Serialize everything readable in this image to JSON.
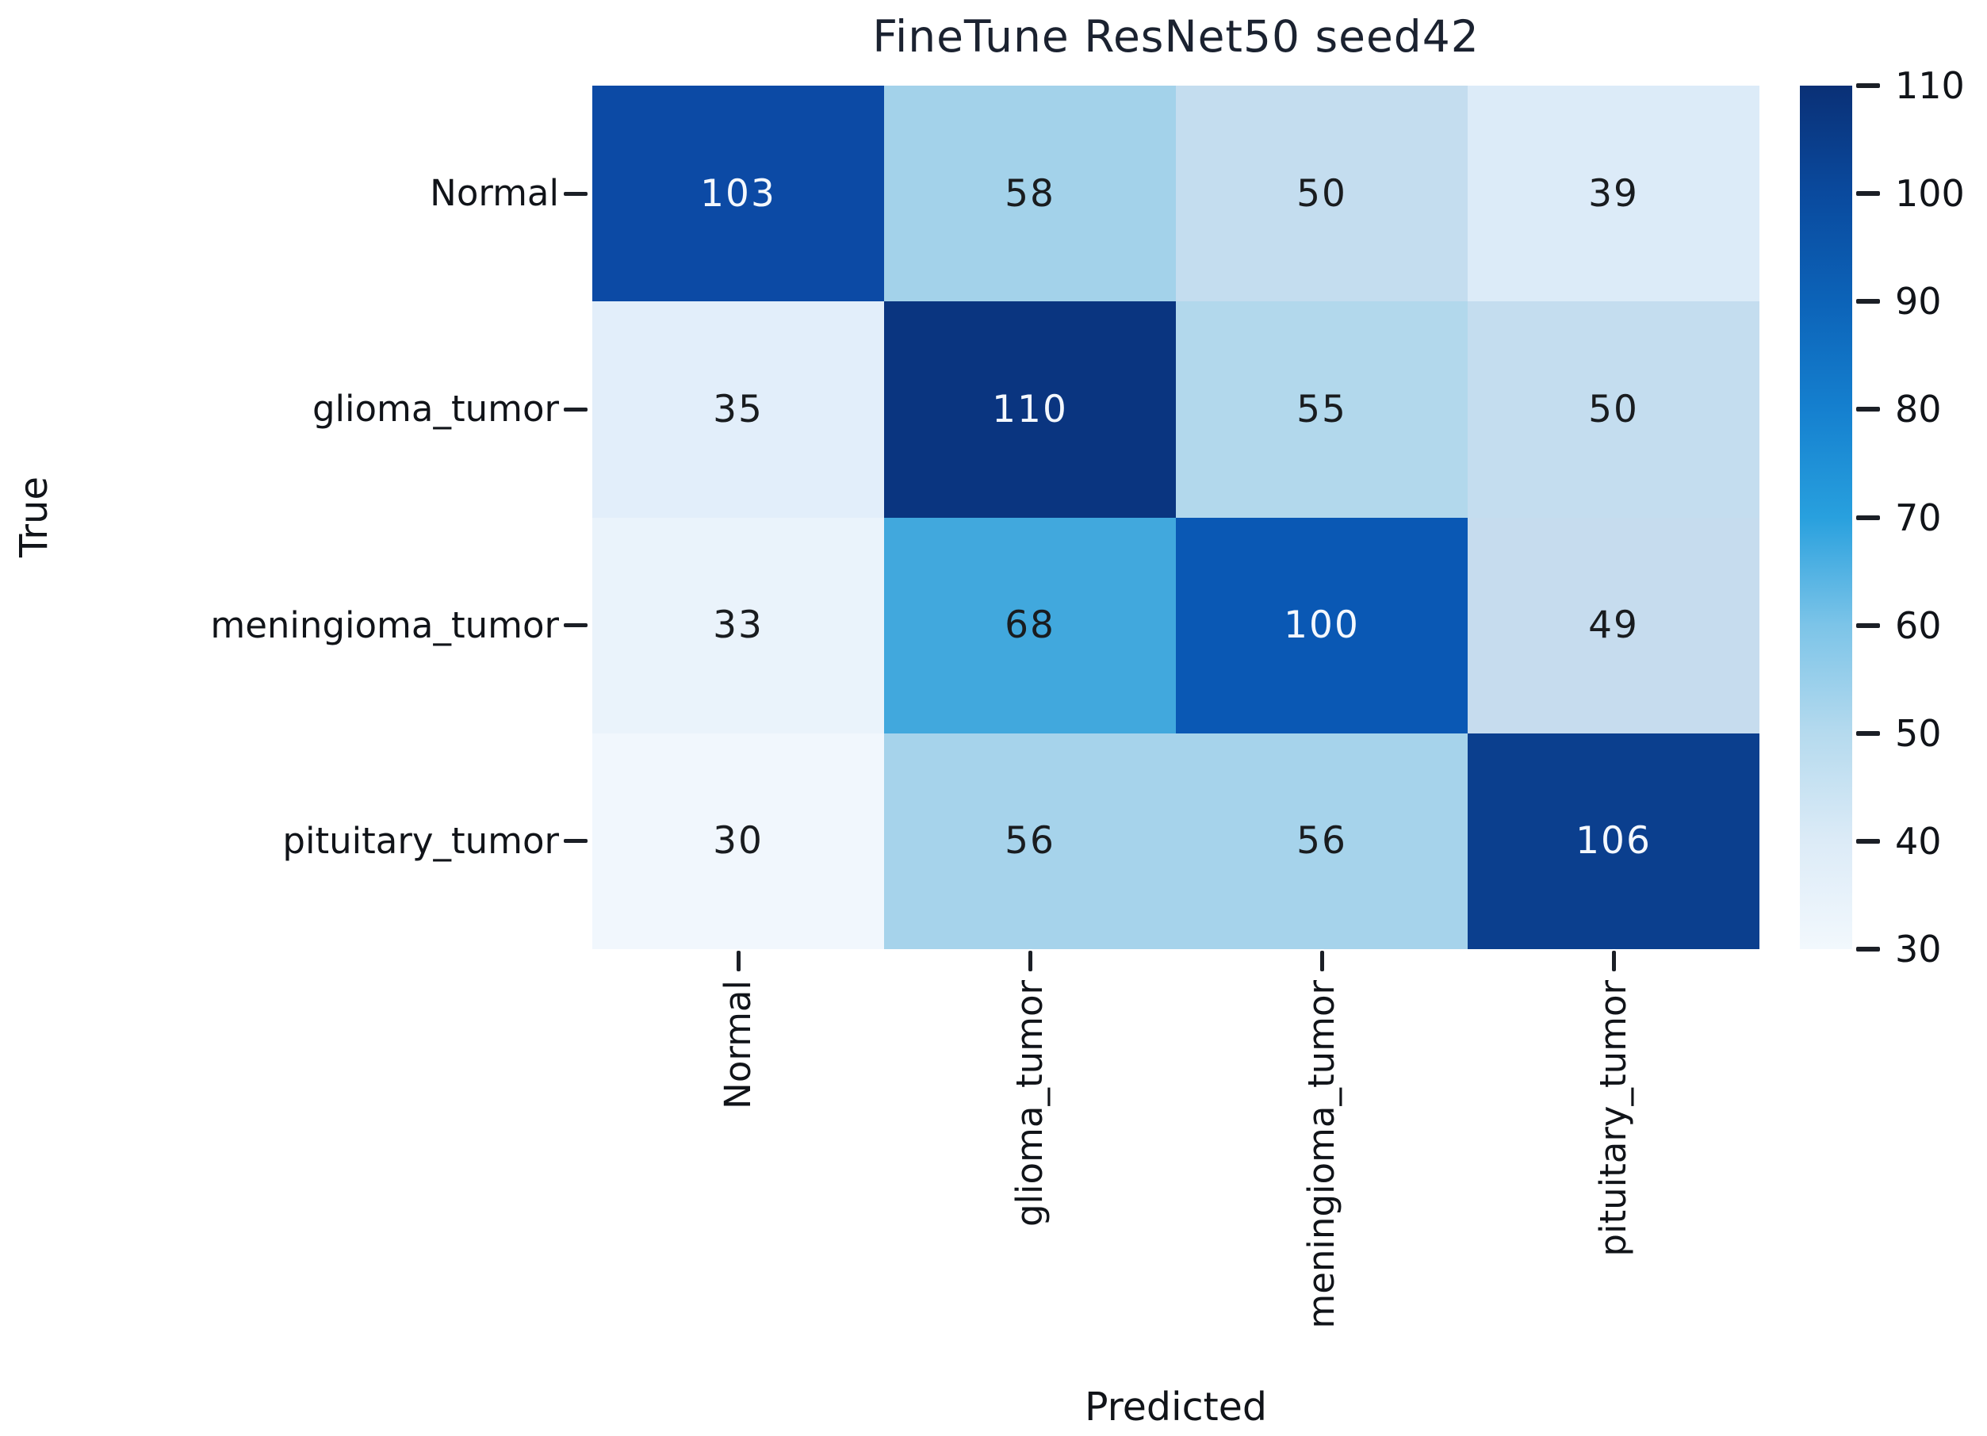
{
  "title": "FineTune ResNet50 seed42",
  "chart_data": {
    "type": "heatmap",
    "title": "FineTune ResNet50 seed42",
    "xlabel": "Predicted",
    "ylabel": "True",
    "x_categories": [
      "Normal",
      "glioma_tumor",
      "meningioma_tumor",
      "pituitary_tumor"
    ],
    "y_categories": [
      "Normal",
      "glioma_tumor",
      "meningioma_tumor",
      "pituitary_tumor"
    ],
    "values": [
      [
        103,
        58,
        50,
        39
      ],
      [
        35,
        110,
        55,
        50
      ],
      [
        33,
        68,
        100,
        49
      ],
      [
        30,
        56,
        56,
        106
      ]
    ],
    "cell_colors": [
      [
        "#0c4aa5",
        "#a3d2ea",
        "#c4ddef",
        "#dcebf8"
      ],
      [
        "#e2eefa",
        "#0a3580",
        "#b2d8ec",
        "#c4ddef"
      ],
      [
        "#eaf3fb",
        "#41a8dd",
        "#0a58b4",
        "#c6dcee"
      ],
      [
        "#f1f7fd",
        "#a6d3eb",
        "#a6d3eb",
        "#0b3f8e"
      ]
    ],
    "cell_text_colors": [
      [
        "#f4f8fd",
        "#191c1f",
        "#191c1f",
        "#191c1f"
      ],
      [
        "#191c1f",
        "#f4f8fd",
        "#191c1f",
        "#191c1f"
      ],
      [
        "#191c1f",
        "#191c1f",
        "#f4f8fd",
        "#191c1f"
      ],
      [
        "#191c1f",
        "#191c1f",
        "#191c1f",
        "#f4f8fd"
      ]
    ],
    "colorbar": {
      "vmin": 30,
      "vmax": 110,
      "ticks": [
        110,
        100,
        90,
        80,
        70,
        60,
        50,
        40,
        30
      ],
      "colormap": "Blues",
      "gradient_top_to_bottom": [
        "#0a3076",
        "#0a4a9e",
        "#0c63b8",
        "#1580cf",
        "#28a0de",
        "#7cc4e8",
        "#b5daee",
        "#dcebf7",
        "#f2f8fd"
      ]
    },
    "grid": false,
    "legend_position": "right-colorbar"
  }
}
